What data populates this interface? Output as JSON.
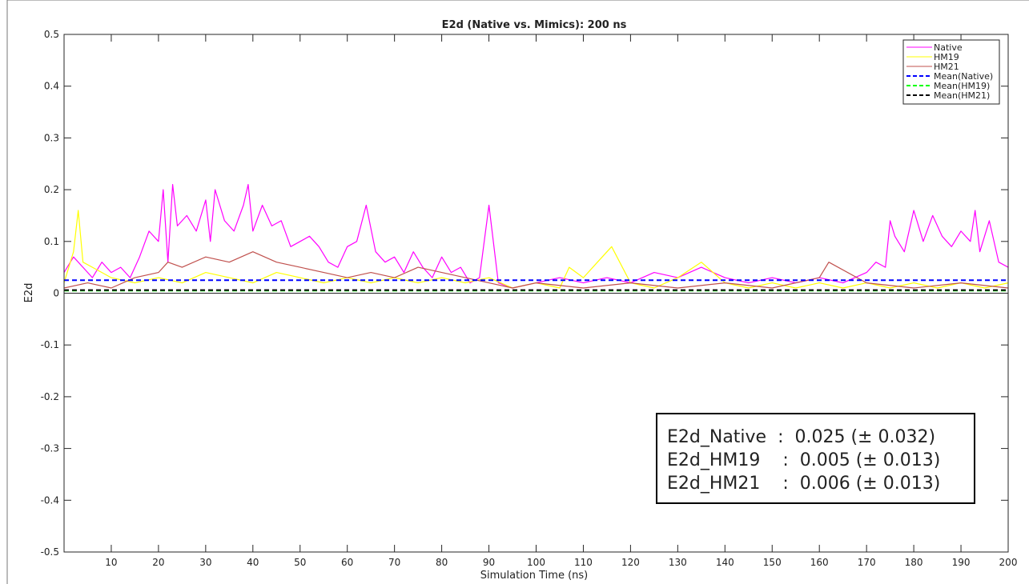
{
  "chart_data": {
    "type": "line",
    "title": "E2d (Native vs. Mimics): 200 ns",
    "xlabel": "Simulation Time (ns)",
    "ylabel": "E2d",
    "xlim": [
      0,
      200
    ],
    "ylim": [
      -0.5,
      0.5
    ],
    "xticks": [
      "10",
      "20",
      "30",
      "40",
      "50",
      "60",
      "70",
      "80",
      "90",
      "100",
      "110",
      "120",
      "130",
      "140",
      "150",
      "160",
      "170",
      "180",
      "190",
      "200"
    ],
    "yticks": [
      "0.5",
      "0.4",
      "0.3",
      "0.2",
      "0.1",
      "0",
      "-0.1",
      "-0.2",
      "-0.3",
      "-0.4",
      "-0.5"
    ],
    "grid": false,
    "legend_position": "top-right",
    "series": [
      {
        "name": "Native",
        "color": "#ff00ff",
        "style": "solid",
        "x": [
          0,
          2,
          4,
          6,
          8,
          10,
          12,
          14,
          16,
          18,
          20,
          21,
          22,
          23,
          24,
          26,
          28,
          30,
          31,
          32,
          34,
          36,
          38,
          39,
          40,
          42,
          44,
          46,
          48,
          50,
          52,
          54,
          56,
          58,
          60,
          62,
          64,
          66,
          68,
          70,
          72,
          74,
          76,
          78,
          80,
          82,
          84,
          86,
          88,
          90,
          92,
          95,
          100,
          105,
          110,
          115,
          120,
          125,
          130,
          135,
          140,
          145,
          150,
          155,
          160,
          165,
          170,
          172,
          174,
          175,
          176,
          178,
          180,
          182,
          184,
          186,
          188,
          190,
          192,
          193,
          194,
          196,
          198,
          200
        ],
        "y": [
          0.04,
          0.07,
          0.05,
          0.03,
          0.06,
          0.04,
          0.05,
          0.03,
          0.07,
          0.12,
          0.1,
          0.2,
          0.06,
          0.21,
          0.13,
          0.15,
          0.12,
          0.18,
          0.1,
          0.2,
          0.14,
          0.12,
          0.17,
          0.21,
          0.12,
          0.17,
          0.13,
          0.14,
          0.09,
          0.1,
          0.11,
          0.09,
          0.06,
          0.05,
          0.09,
          0.1,
          0.17,
          0.08,
          0.06,
          0.07,
          0.04,
          0.08,
          0.05,
          0.03,
          0.07,
          0.04,
          0.05,
          0.02,
          0.03,
          0.17,
          0.02,
          0.01,
          0.02,
          0.03,
          0.02,
          0.03,
          0.02,
          0.04,
          0.03,
          0.05,
          0.03,
          0.02,
          0.03,
          0.02,
          0.03,
          0.02,
          0.04,
          0.06,
          0.05,
          0.14,
          0.11,
          0.08,
          0.16,
          0.1,
          0.15,
          0.11,
          0.09,
          0.12,
          0.1,
          0.16,
          0.08,
          0.14,
          0.06,
          0.05
        ]
      },
      {
        "name": "HM19",
        "color": "#ffff00",
        "style": "solid",
        "x": [
          0,
          2,
          3,
          4,
          6,
          8,
          10,
          15,
          20,
          25,
          30,
          35,
          40,
          45,
          50,
          55,
          60,
          65,
          70,
          75,
          80,
          85,
          90,
          95,
          100,
          105,
          107,
          110,
          113,
          116,
          120,
          125,
          130,
          135,
          140,
          145,
          150,
          155,
          160,
          165,
          170,
          175,
          180,
          185,
          190,
          195,
          200
        ],
        "y": [
          0.02,
          0.08,
          0.16,
          0.06,
          0.05,
          0.04,
          0.03,
          0.02,
          0.03,
          0.02,
          0.04,
          0.03,
          0.02,
          0.04,
          0.03,
          0.02,
          0.03,
          0.02,
          0.03,
          0.02,
          0.03,
          0.02,
          0.03,
          0.01,
          0.02,
          0.01,
          0.05,
          0.03,
          0.06,
          0.09,
          0.02,
          0.01,
          0.03,
          0.06,
          0.02,
          0.01,
          0.02,
          0.01,
          0.02,
          0.01,
          0.02,
          0.01,
          0.02,
          0.01,
          0.02,
          0.01,
          0.02
        ]
      },
      {
        "name": "HM21",
        "color": "#c0504d",
        "style": "solid",
        "x": [
          0,
          5,
          10,
          15,
          20,
          22,
          25,
          30,
          35,
          40,
          45,
          50,
          55,
          60,
          65,
          70,
          75,
          80,
          85,
          90,
          95,
          100,
          110,
          120,
          130,
          140,
          150,
          160,
          162,
          170,
          180,
          190,
          200
        ],
        "y": [
          0.01,
          0.02,
          0.01,
          0.03,
          0.04,
          0.06,
          0.05,
          0.07,
          0.06,
          0.08,
          0.06,
          0.05,
          0.04,
          0.03,
          0.04,
          0.03,
          0.05,
          0.04,
          0.03,
          0.02,
          0.01,
          0.02,
          0.01,
          0.02,
          0.01,
          0.02,
          0.01,
          0.03,
          0.06,
          0.02,
          0.01,
          0.02,
          0.01
        ]
      },
      {
        "name": "Mean(Native)",
        "color": "#0000ff",
        "style": "dashed",
        "x": [
          0,
          200
        ],
        "y": [
          0.025,
          0.025
        ]
      },
      {
        "name": "Mean(HM19)",
        "color": "#00ff00",
        "style": "dashed",
        "x": [
          0,
          200
        ],
        "y": [
          0.005,
          0.005
        ]
      },
      {
        "name": "Mean(HM21)",
        "color": "#000000",
        "style": "dashed",
        "x": [
          0,
          200
        ],
        "y": [
          0.006,
          0.006
        ]
      }
    ],
    "annotation": {
      "lines": [
        "E2d_Native  :  0.025 (± 0.032)",
        "E2d_HM19    :  0.005 (± 0.013)",
        "E2d_HM21    :  0.006 (± 0.013)"
      ]
    }
  }
}
